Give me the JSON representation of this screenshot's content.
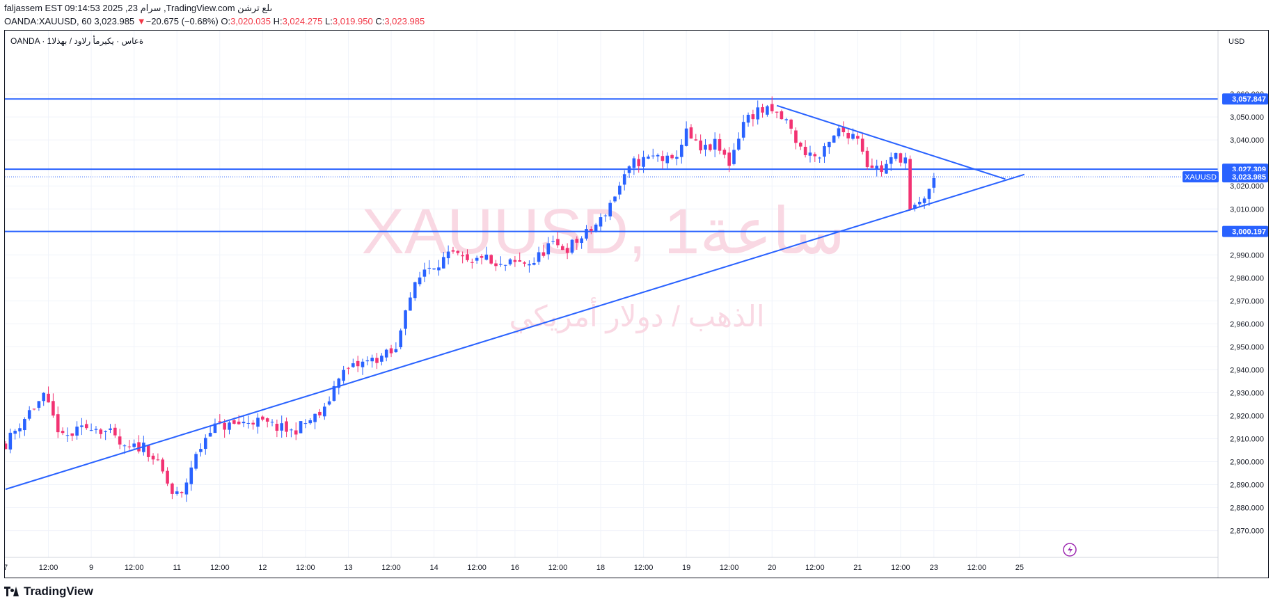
{
  "header": {
    "line1": "faljassem EST 09:14:53 2025 ,23 سرام ,TradingView.com ىلع ترشن",
    "symbol_line": "OANDA:XAUUSD, 60 3,023.985",
    "change_arrow": "▼",
    "change": "−20.675 (−0.68%)",
    "ohlc": {
      "o_label": "O:",
      "o": "3,020.035",
      "h_label": "H:",
      "h": "3,024.275",
      "l_label": "L:",
      "l": "3,019.950",
      "c_label": "C:",
      "c": "3,023.985"
    }
  },
  "legend_label": "OANDA · 1ةعاس · يكيرمأ رلاود / بهذلا",
  "watermark": {
    "line1": "XAUUSD, 1ساعة",
    "line2": "الذهب / دولار أمريكي"
  },
  "currency_label": "USD",
  "footer": {
    "brand": "TradingView"
  },
  "colors": {
    "up": "#2962ff",
    "down": "#f23272",
    "line": "#2962ff",
    "grid": "#f0f3fa",
    "watermark": "#f9d8e3",
    "text": "#131722",
    "negative": "#f23645"
  },
  "chart_data": {
    "type": "candlestick",
    "symbol": "XAUUSD",
    "interval": "60",
    "ylim": [
      2862,
      3077
    ],
    "y_ticks": [
      2870,
      2880,
      2890,
      2900,
      2910,
      2920,
      2930,
      2940,
      2950,
      2960,
      2970,
      2980,
      2990,
      3010,
      3020,
      3040,
      3050,
      3060
    ],
    "y_tick_labels": [
      "2,870.000",
      "2,880.000",
      "2,890.000",
      "2,900.000",
      "2,910.000",
      "2,920.000",
      "2,930.000",
      "2,940.000",
      "2,950.000",
      "2,960.000",
      "2,970.000",
      "2,980.000",
      "2,990.000",
      "3,010.000",
      "3,020.000",
      "3,040.000",
      "3,050.000",
      "3,060.000"
    ],
    "x_ticks": [
      {
        "i": 0,
        "label": "7"
      },
      {
        "i": 9,
        "label": "12:00"
      },
      {
        "i": 18,
        "label": "9"
      },
      {
        "i": 27,
        "label": "12:00"
      },
      {
        "i": 36,
        "label": "11"
      },
      {
        "i": 45,
        "label": "12:00"
      },
      {
        "i": 54,
        "label": "12"
      },
      {
        "i": 63,
        "label": "12:00"
      },
      {
        "i": 72,
        "label": "13"
      },
      {
        "i": 81,
        "label": "12:00"
      },
      {
        "i": 90,
        "label": "14"
      },
      {
        "i": 99,
        "label": "12:00"
      },
      {
        "i": 107,
        "label": "16"
      },
      {
        "i": 116,
        "label": "12:00"
      },
      {
        "i": 125,
        "label": "18"
      },
      {
        "i": 134,
        "label": "12:00"
      },
      {
        "i": 143,
        "label": "19"
      },
      {
        "i": 152,
        "label": "12:00"
      },
      {
        "i": 161,
        "label": "20"
      },
      {
        "i": 170,
        "label": "12:00"
      },
      {
        "i": 179,
        "label": "21"
      },
      {
        "i": 188,
        "label": "12:00"
      },
      {
        "i": 195,
        "label": "23"
      },
      {
        "i": 204,
        "label": "12:00"
      },
      {
        "i": 213,
        "label": "25"
      }
    ],
    "horizontal_lines": [
      {
        "value": 3057.847,
        "label": "3,057.847"
      },
      {
        "value": 3027.309,
        "label": "3,027.309"
      },
      {
        "value": 3000.197,
        "label": "3,000.197"
      }
    ],
    "trend_lines": [
      {
        "from": {
          "i": 0,
          "v": 2888
        },
        "to": {
          "i": 214,
          "v": 3025
        }
      },
      {
        "from": {
          "i": 162,
          "v": 3055
        },
        "to": {
          "i": 210,
          "v": 3023
        }
      }
    ],
    "last_price": {
      "symbol": "XAUUSD",
      "value": 3023.985,
      "label": "3,023.985"
    },
    "waypoints": [
      [
        0,
        2908
      ],
      [
        5,
        2922
      ],
      [
        8,
        2928
      ],
      [
        12,
        2910
      ],
      [
        18,
        2916
      ],
      [
        22,
        2912
      ],
      [
        25,
        2905
      ],
      [
        29,
        2907
      ],
      [
        31,
        2902
      ],
      [
        33,
        2895
      ],
      [
        35,
        2886
      ],
      [
        37,
        2885
      ],
      [
        39,
        2898
      ],
      [
        43,
        2915
      ],
      [
        48,
        2916
      ],
      [
        52,
        2918
      ],
      [
        57,
        2915
      ],
      [
        60,
        2913
      ],
      [
        64,
        2918
      ],
      [
        67,
        2922
      ],
      [
        70,
        2938
      ],
      [
        74,
        2942
      ],
      [
        78,
        2945
      ],
      [
        82,
        2948
      ],
      [
        84,
        2968
      ],
      [
        88,
        2984
      ],
      [
        94,
        2990
      ],
      [
        98,
        2985
      ],
      [
        100,
        2990
      ],
      [
        103,
        2984
      ],
      [
        106,
        2986
      ],
      [
        111,
        2987
      ],
      [
        114,
        2994
      ],
      [
        118,
        2993
      ],
      [
        122,
        2999
      ],
      [
        125,
        3005
      ],
      [
        129,
        3020
      ],
      [
        132,
        3030
      ],
      [
        137,
        3033
      ],
      [
        140,
        3030
      ],
      [
        143,
        3043
      ],
      [
        146,
        3035
      ],
      [
        149,
        3038
      ],
      [
        152,
        3030
      ],
      [
        155,
        3048
      ],
      [
        158,
        3053
      ],
      [
        161,
        3052
      ],
      [
        164,
        3048
      ],
      [
        167,
        3036
      ],
      [
        171,
        3032
      ],
      [
        175,
        3044
      ],
      [
        179,
        3042
      ],
      [
        181,
        3030
      ],
      [
        184,
        3027
      ],
      [
        187,
        3033
      ],
      [
        189,
        3032
      ],
      [
        190,
        3008
      ],
      [
        192,
        3012
      ],
      [
        195,
        3022
      ]
    ]
  }
}
